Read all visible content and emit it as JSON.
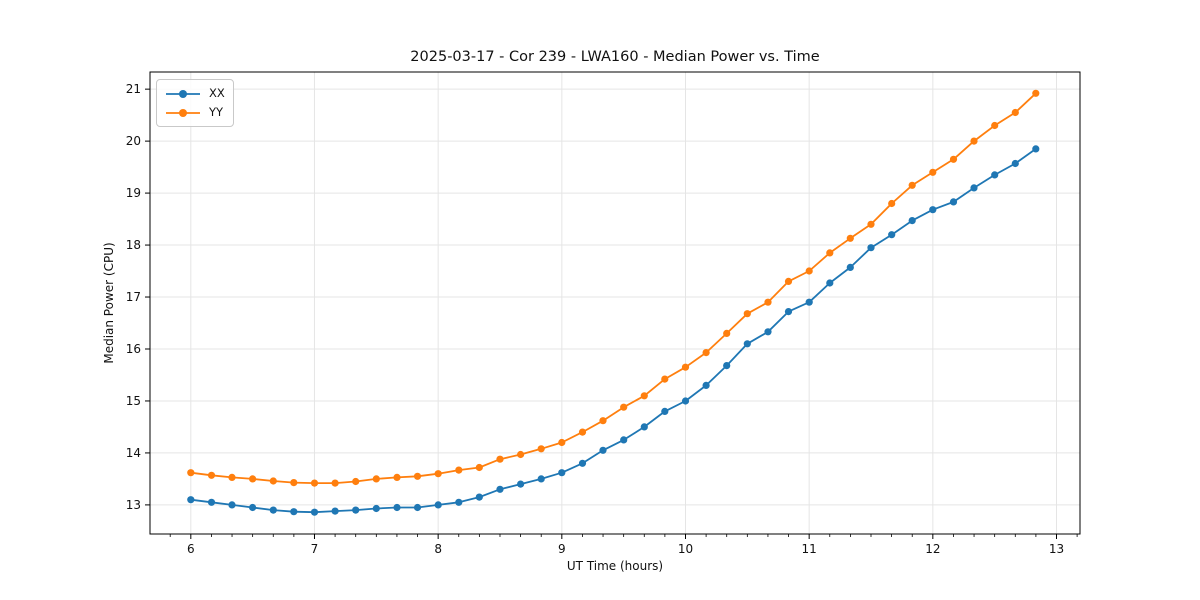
{
  "figure": {
    "background": "#ffffff"
  },
  "chart_data": {
    "type": "line",
    "title": "2025-03-17 - Cor 239 - LWA160 - Median Power vs. Time",
    "xlabel": "UT Time (hours)",
    "ylabel": "Median Power (CPU)",
    "xlim": [
      5.67,
      13.19
    ],
    "ylim": [
      12.44,
      21.33
    ],
    "xticks": [
      6,
      7,
      8,
      9,
      10,
      11,
      12,
      13
    ],
    "yticks": [
      13,
      14,
      15,
      16,
      17,
      18,
      19,
      20,
      21
    ],
    "minor_xtick_interval_hours": 0.1667,
    "grid": true,
    "grid_color": "#e5e5e5",
    "spine_color": "#000000",
    "legend_position": "upper-left",
    "x": [
      6.0,
      6.167,
      6.333,
      6.5,
      6.667,
      6.833,
      7.0,
      7.167,
      7.333,
      7.5,
      7.667,
      7.833,
      8.0,
      8.167,
      8.333,
      8.5,
      8.667,
      8.833,
      9.0,
      9.167,
      9.333,
      9.5,
      9.667,
      9.833,
      10.0,
      10.167,
      10.333,
      10.5,
      10.667,
      10.833,
      11.0,
      11.167,
      11.333,
      11.5,
      11.667,
      11.833,
      12.0,
      12.167,
      12.333,
      12.5,
      12.667,
      12.833
    ],
    "series": [
      {
        "name": "XX",
        "color": "#1f77b4",
        "values": [
          13.1,
          13.05,
          13.0,
          12.95,
          12.9,
          12.87,
          12.86,
          12.88,
          12.9,
          12.93,
          12.95,
          12.95,
          13.0,
          13.05,
          13.15,
          13.3,
          13.4,
          13.5,
          13.62,
          13.8,
          14.05,
          14.25,
          14.5,
          14.8,
          15.0,
          15.3,
          15.68,
          16.1,
          16.33,
          16.72,
          16.9,
          17.27,
          17.57,
          17.95,
          18.2,
          18.47,
          18.68,
          18.83,
          19.1,
          19.35,
          19.57,
          19.85
        ]
      },
      {
        "name": "YY",
        "color": "#ff7f0e",
        "values": [
          13.62,
          13.57,
          13.53,
          13.5,
          13.46,
          13.43,
          13.42,
          13.42,
          13.45,
          13.5,
          13.53,
          13.55,
          13.6,
          13.67,
          13.72,
          13.88,
          13.97,
          14.08,
          14.2,
          14.4,
          14.62,
          14.88,
          15.1,
          15.42,
          15.65,
          15.93,
          16.3,
          16.68,
          16.9,
          17.3,
          17.5,
          17.85,
          18.13,
          18.4,
          18.8,
          19.15,
          19.4,
          19.65,
          20.0,
          20.3,
          20.55,
          20.92
        ]
      }
    ]
  }
}
